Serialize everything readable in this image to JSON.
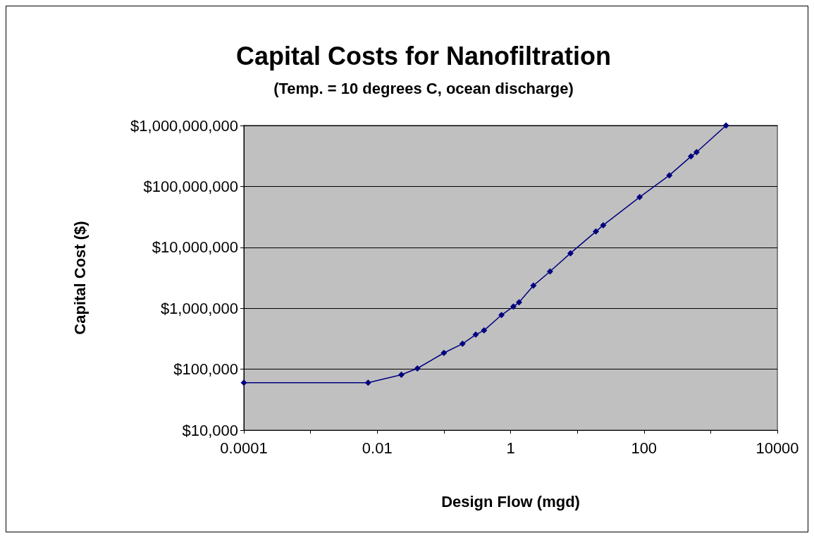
{
  "chart_data": {
    "type": "line",
    "title": "Capital Costs for Nanofiltration",
    "subtitle": "(Temp. = 10 degrees C, ocean discharge)",
    "xlabel": "Design Flow (mgd)",
    "ylabel": "Capital Cost ($)",
    "log": "xy",
    "grid": "y",
    "marker": "diamond",
    "line_style": "solid",
    "xlim": [
      0.0001,
      10000
    ],
    "xticks": [
      0.0001,
      {
        "value": 0.001,
        "label": null
      },
      0.01,
      {
        "value": 0.1,
        "label": null
      },
      1,
      {
        "value": 10,
        "label": null
      },
      100,
      {
        "value": 1000,
        "label": null
      },
      10000
    ],
    "ylim": [
      10000,
      1000000000
    ],
    "yticks": [
      {
        "value": 10000,
        "label": "$10,000"
      },
      {
        "value": 100000,
        "label": "$100,000"
      },
      {
        "value": 1000000,
        "label": "$1,000,000"
      },
      {
        "value": 10000000,
        "label": "$10,000,000"
      },
      {
        "value": 100000000,
        "label": "$100,000,000"
      },
      {
        "value": 1000000000,
        "label": "$1,000,000,000"
      }
    ],
    "series": [
      {
        "color": "#000080",
        "x": [
          0.0001,
          0.0073,
          0.023,
          0.04,
          0.1,
          0.19,
          0.3,
          0.4,
          0.73,
          1.1,
          1.34,
          2.2,
          3.9,
          7.9,
          19,
          24.5,
          86,
          240,
          507,
          615,
          1700
        ],
        "values": [
          60000,
          60000,
          81000,
          103000,
          185000,
          261000,
          369000,
          433000,
          775000,
          1066000,
          1250000,
          2360000,
          4020000,
          8000000,
          18200000,
          23100000,
          66800000,
          152000000,
          311000000,
          365000000,
          1000000000
        ]
      }
    ]
  }
}
